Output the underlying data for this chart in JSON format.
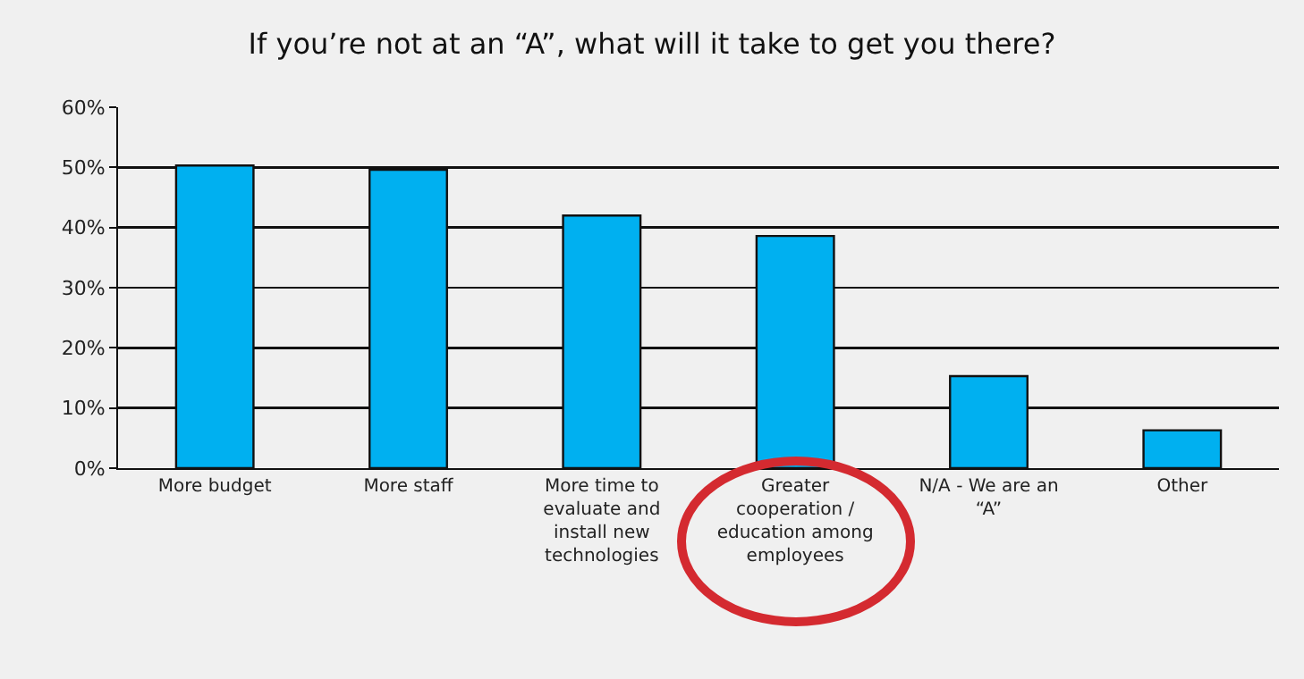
{
  "chart_data": {
    "type": "bar",
    "title": "If you’re not at an “A”, what will it take to get you there?",
    "categories": [
      "More budget",
      "More staff",
      "More time to evaluate and install new technologies",
      "Greater cooperation / education among employees",
      "N/A - We are an “A”",
      "Other"
    ],
    "values": [
      50.3,
      49.6,
      42.0,
      38.6,
      15.3,
      6.3
    ],
    "color": "#00b0f0",
    "ylim": [
      0,
      60
    ],
    "yticks": [
      {
        "value": 0,
        "label": "0%"
      },
      {
        "value": 10,
        "label": "10%"
      },
      {
        "value": 20,
        "label": "20%"
      },
      {
        "value": 30,
        "label": "30%"
      },
      {
        "value": 40,
        "label": "40%"
      },
      {
        "value": 50,
        "label": "50%"
      },
      {
        "value": 60,
        "label": "60%"
      }
    ],
    "grid": "y"
  }
}
